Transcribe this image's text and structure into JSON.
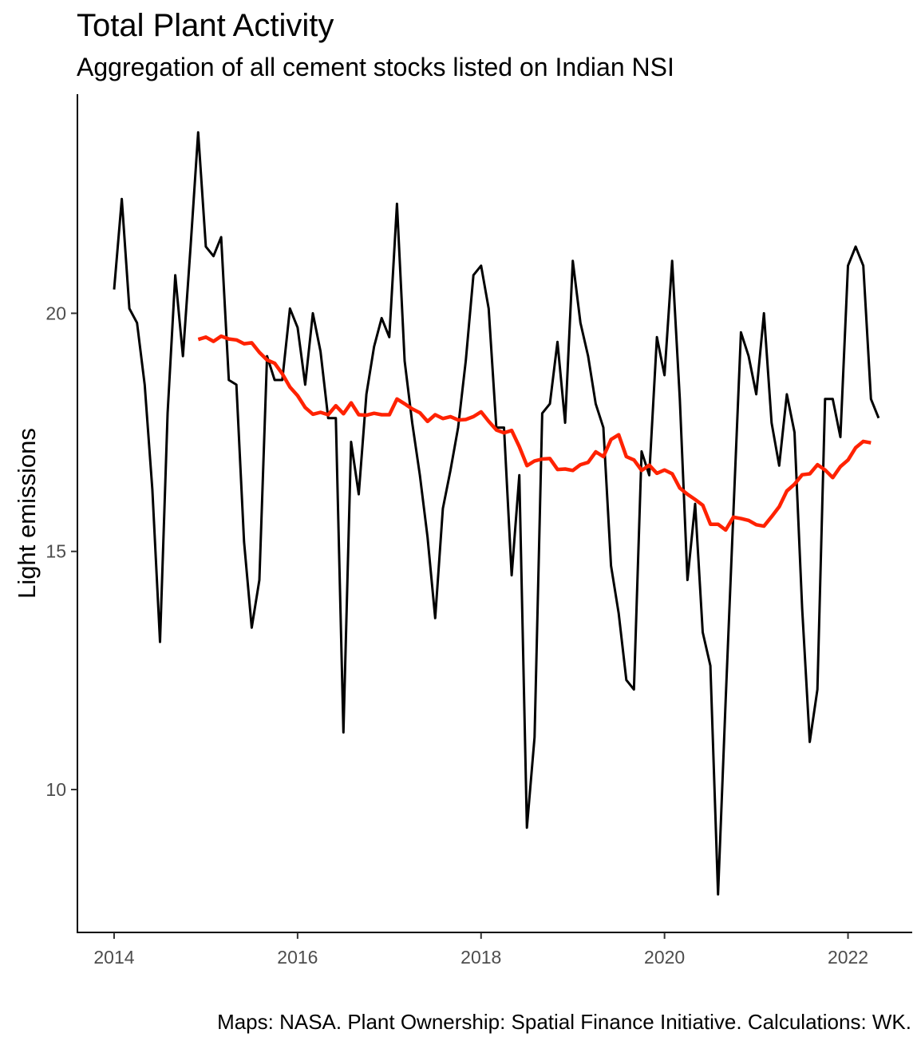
{
  "chart_data": {
    "type": "line",
    "title": "Total Plant Activity",
    "subtitle": "Aggregation of all cement stocks listed on Indian NSI",
    "caption": "Maps: NASA. Plant Ownership: Spatial Finance Initiative. Calculations: WK.",
    "xlabel": "",
    "ylabel": "Light emissions",
    "xlim": [
      2013.6,
      2022.7
    ],
    "ylim": [
      7.0,
      24.6
    ],
    "x_ticks": [
      2014,
      2016,
      2018,
      2020,
      2022
    ],
    "y_ticks": [
      10,
      15,
      20
    ],
    "grid": false,
    "legend": "none",
    "series": [
      {
        "color": "#000000",
        "x_start": 2014.0,
        "x_step_months": 1,
        "values": [
          20.5,
          22.4,
          20.1,
          19.8,
          18.5,
          16.3,
          13.1,
          17.9,
          20.8,
          19.1,
          21.4,
          23.8,
          21.4,
          21.2,
          21.6,
          18.6,
          18.5,
          15.2,
          13.4,
          14.4,
          19.1,
          18.6,
          18.6,
          20.1,
          19.7,
          18.5,
          20.0,
          19.2,
          17.8,
          17.8,
          11.2,
          17.3,
          16.2,
          18.3,
          19.3,
          19.9,
          19.5,
          22.3,
          19.0,
          17.7,
          16.6,
          15.3,
          13.6,
          15.9,
          16.7,
          17.6,
          19.0,
          20.8,
          21.0,
          20.1,
          17.6,
          17.6,
          14.5,
          16.6,
          9.2,
          11.1,
          17.9,
          18.1,
          19.4,
          17.7,
          21.1,
          19.8,
          19.1,
          18.1,
          17.6,
          14.7,
          13.7,
          12.3,
          12.1,
          17.1,
          16.6,
          19.5,
          18.7,
          21.1,
          18.2,
          14.4,
          16.0,
          13.3,
          12.6,
          7.8,
          11.9,
          15.8,
          19.6,
          19.1,
          18.3,
          20.0,
          17.7,
          16.8,
          18.3,
          17.5,
          13.8,
          11.0,
          12.1,
          18.2,
          18.2,
          17.4,
          21.0,
          21.4,
          21.0,
          18.2,
          17.8
        ]
      },
      {
        "color": "#ff2200",
        "x_start": 2014.917,
        "x_step_months": 1,
        "values": [
          19.45,
          19.5,
          19.41,
          19.52,
          19.46,
          19.44,
          19.36,
          19.38,
          19.18,
          19.02,
          18.95,
          18.73,
          18.45,
          18.27,
          18.02,
          17.88,
          17.92,
          17.87,
          18.06,
          17.89,
          18.12,
          17.87,
          17.86,
          17.9,
          17.87,
          17.87,
          18.2,
          18.1,
          17.99,
          17.91,
          17.73,
          17.87,
          17.79,
          17.83,
          17.76,
          17.77,
          17.83,
          17.93,
          17.73,
          17.55,
          17.49,
          17.54,
          17.2,
          16.8,
          16.9,
          16.94,
          16.95,
          16.72,
          16.73,
          16.7,
          16.82,
          16.87,
          17.09,
          16.99,
          17.35,
          17.45,
          16.99,
          16.92,
          16.7,
          16.81,
          16.64,
          16.71,
          16.63,
          16.33,
          16.2,
          16.09,
          15.97,
          15.57,
          15.57,
          15.45,
          15.72,
          15.69,
          15.65,
          15.56,
          15.53,
          15.73,
          15.94,
          16.27,
          16.41,
          16.61,
          16.63,
          16.82,
          16.71,
          16.55,
          16.78,
          16.92,
          17.18,
          17.31,
          17.28
        ]
      }
    ]
  }
}
